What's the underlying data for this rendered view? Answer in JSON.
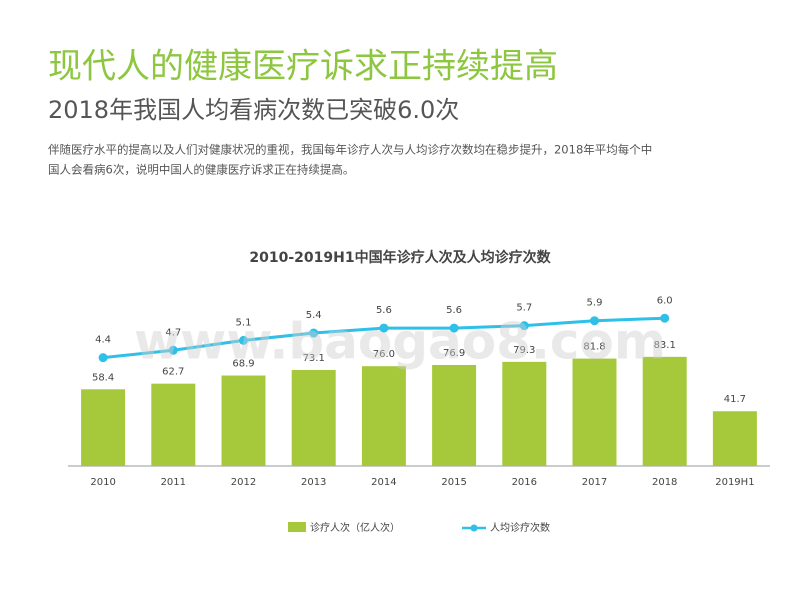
{
  "header": {
    "title": "现代人的健康医疗诉求正持续提高",
    "subtitle": "2018年我国人均看病次数已突破6.0次",
    "description": [
      "伴随医疗水平的提高以及人们对健康状况的重视，我国每年诊疗人次与人均诊疗次数均在稳步提升，2018年平均每个中",
      "国人会看病6次，说明中国人的健康医疗诉求正在持续提高。"
    ]
  },
  "watermark": "www.baogao8.com",
  "chart_data": {
    "type": "bar_line",
    "title": "2010-2019H1中国年诊疗人次及人均诊疗次数",
    "categories": [
      "2010",
      "2011",
      "2012",
      "2013",
      "2014",
      "2015",
      "2016",
      "2017",
      "2018",
      "2019H1"
    ],
    "ylim": [
      0,
      150
    ],
    "y2lim": [
      0,
      8
    ],
    "series": [
      {
        "name": "诊疗人次（亿人次）",
        "type": "bar",
        "color": "#a6c93b",
        "values": [
          58.4,
          62.7,
          68.9,
          73.1,
          76.0,
          76.9,
          79.3,
          81.8,
          83.1,
          41.7
        ],
        "value_labels": [
          "58.4",
          "62.7",
          "68.9",
          "73.1",
          "76.0",
          "76.9",
          "79.3",
          "81.8",
          "83.1",
          "41.7"
        ]
      },
      {
        "name": "人均诊疗次数",
        "type": "line",
        "axis": "y2",
        "color": "#2ec0e8",
        "values": [
          4.4,
          4.7,
          5.1,
          5.4,
          5.6,
          5.6,
          5.7,
          5.9,
          6.0,
          null
        ],
        "value_labels": [
          "4.4",
          "4.7",
          "5.1",
          "5.4",
          "5.6",
          "5.6",
          "5.7",
          "5.9",
          "6.0",
          null
        ]
      }
    ]
  }
}
